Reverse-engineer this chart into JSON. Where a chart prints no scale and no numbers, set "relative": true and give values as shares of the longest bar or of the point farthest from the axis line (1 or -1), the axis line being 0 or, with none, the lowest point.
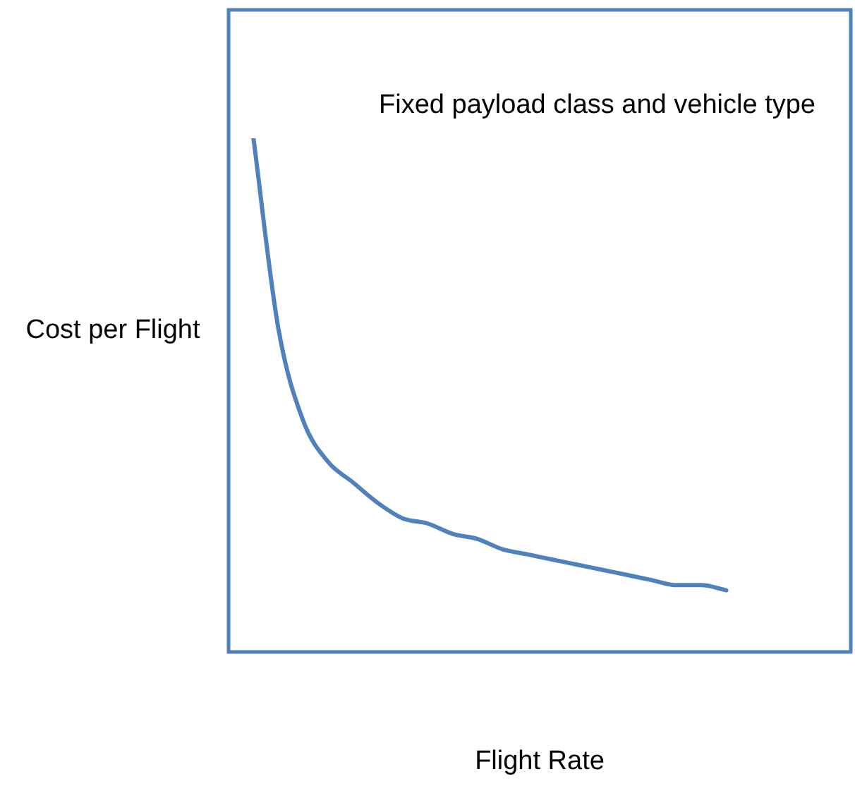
{
  "chart_data": {
    "type": "line",
    "relative": true,
    "xlabel": "Flight Rate",
    "ylabel": "Cost per Flight",
    "annotations": [
      "Fixed payload class and vehicle type"
    ],
    "categories": [
      null,
      null,
      null,
      null,
      null,
      null,
      null,
      null,
      null,
      null,
      null,
      null,
      null,
      null,
      null,
      null,
      null,
      null,
      null,
      null,
      null,
      null,
      null,
      null,
      null,
      null
    ],
    "series": [
      {
        "color": "#4f81bd",
        "values": [
          null,
          1,
          0.63,
          0.45,
          0.37,
          0.33,
          0.29,
          0.26,
          0.25,
          0.23,
          0.22,
          0.2,
          0.19,
          0.18,
          0.17,
          0.16,
          0.15,
          0.14,
          0.13,
          0.13,
          0.12,
          null,
          null,
          null,
          null,
          null
        ]
      }
    ],
    "legend": false,
    "marker": "none",
    "line_style": "solid"
  }
}
